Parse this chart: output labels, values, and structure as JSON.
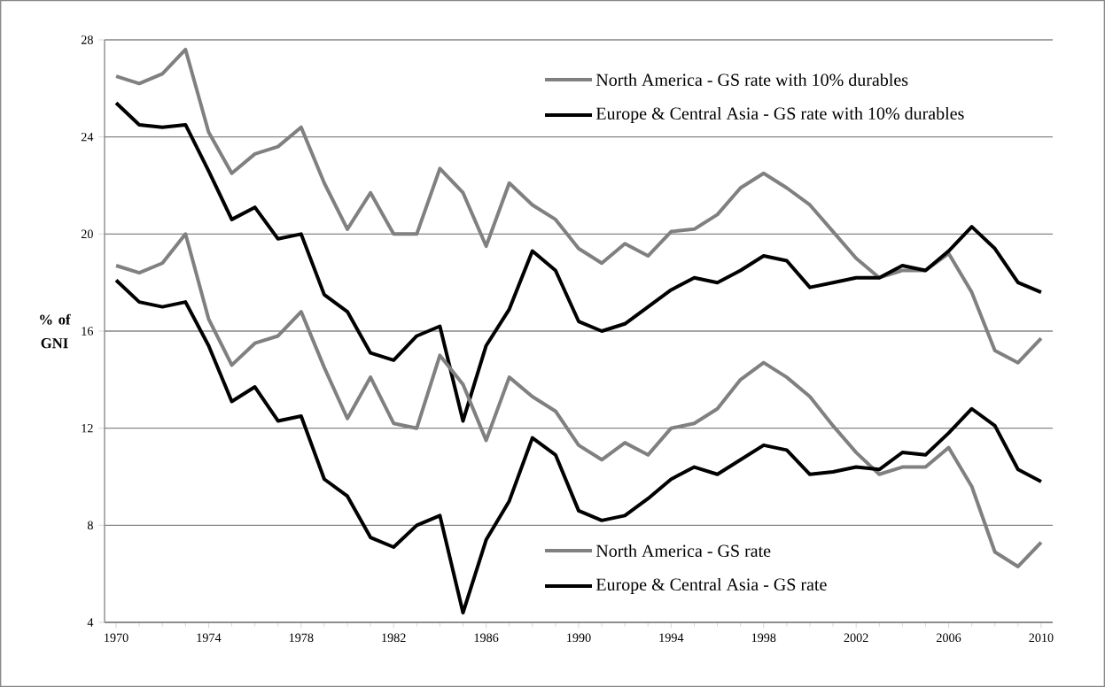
{
  "chart_data": {
    "type": "line",
    "ylabel": "% of GNI",
    "x": [
      1970,
      1971,
      1972,
      1973,
      1974,
      1975,
      1976,
      1977,
      1978,
      1979,
      1980,
      1981,
      1982,
      1983,
      1984,
      1985,
      1986,
      1987,
      1988,
      1989,
      1990,
      1991,
      1992,
      1993,
      1994,
      1995,
      1996,
      1997,
      1998,
      1999,
      2000,
      2001,
      2002,
      2003,
      2004,
      2005,
      2006,
      2007,
      2008,
      2009,
      2010
    ],
    "series": [
      {
        "name": "North America - GS rate with 10% durables",
        "color": "#808080",
        "values": [
          26.5,
          26.2,
          26.6,
          27.6,
          24.2,
          22.5,
          23.3,
          23.6,
          24.4,
          22.1,
          20.2,
          21.7,
          20.0,
          20.0,
          22.7,
          21.7,
          19.5,
          22.1,
          21.2,
          20.6,
          19.4,
          18.8,
          19.6,
          19.1,
          20.1,
          20.2,
          20.8,
          21.9,
          22.5,
          21.9,
          21.2,
          20.1,
          19.0,
          18.2,
          18.5,
          18.5,
          19.2,
          17.6,
          15.2,
          14.7,
          15.7
        ]
      },
      {
        "name": "Europe & Central Asia - GS rate with 10% durables",
        "color": "#000000",
        "values": [
          25.4,
          24.5,
          24.4,
          24.5,
          22.6,
          20.6,
          21.1,
          19.8,
          20.0,
          17.5,
          16.8,
          15.1,
          14.8,
          15.8,
          16.2,
          12.3,
          15.4,
          16.9,
          19.3,
          18.5,
          16.4,
          16.0,
          16.3,
          17.0,
          17.7,
          18.2,
          18.0,
          18.5,
          19.1,
          18.9,
          17.8,
          18.0,
          18.2,
          18.2,
          18.7,
          18.5,
          19.3,
          20.3,
          19.4,
          18.0,
          17.6
        ]
      },
      {
        "name": "North America - GS rate",
        "color": "#808080",
        "values": [
          18.7,
          18.4,
          18.8,
          20.0,
          16.5,
          14.6,
          15.5,
          15.8,
          16.8,
          14.5,
          12.4,
          14.1,
          12.2,
          12.0,
          15.0,
          13.8,
          11.5,
          14.1,
          13.3,
          12.7,
          11.3,
          10.7,
          11.4,
          10.9,
          12.0,
          12.2,
          12.8,
          14.0,
          14.7,
          14.1,
          13.3,
          12.1,
          11.0,
          10.1,
          10.4,
          10.4,
          11.2,
          9.6,
          6.9,
          6.3,
          7.3
        ]
      },
      {
        "name": "Europe & Central Asia - GS rate",
        "color": "#000000",
        "values": [
          18.1,
          17.2,
          17.0,
          17.2,
          15.4,
          13.1,
          13.7,
          12.3,
          12.5,
          9.9,
          9.2,
          7.5,
          7.1,
          8.0,
          8.4,
          4.4,
          7.4,
          9.0,
          11.6,
          10.9,
          8.6,
          8.2,
          8.4,
          9.1,
          9.9,
          10.4,
          10.1,
          10.7,
          11.3,
          11.1,
          10.1,
          10.2,
          10.4,
          10.3,
          11.0,
          10.9,
          11.8,
          12.8,
          12.1,
          10.3,
          9.8
        ]
      }
    ],
    "xlim": [
      1969.5,
      2010.5
    ],
    "ylim": [
      4,
      28
    ],
    "xticks": [
      1970,
      1974,
      1978,
      1982,
      1986,
      1990,
      1994,
      1998,
      2002,
      2006,
      2010
    ],
    "yticks": [
      4,
      8,
      12,
      16,
      20,
      24,
      28
    ],
    "grid": "y",
    "legend": "right"
  }
}
